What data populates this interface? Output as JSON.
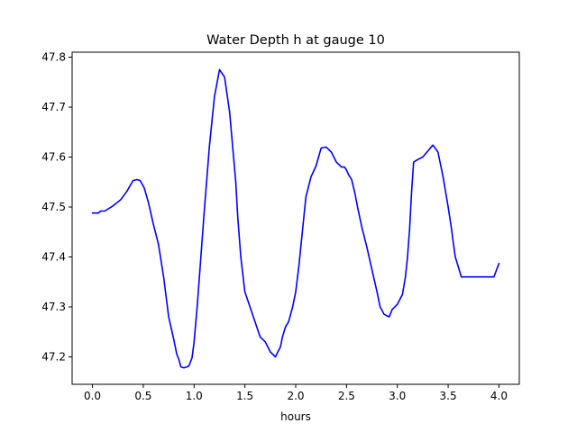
{
  "chart_data": {
    "type": "line",
    "title": "Water Depth h at gauge 10",
    "xlabel": "hours",
    "ylabel": "",
    "xlim": [
      -0.2,
      4.2
    ],
    "ylim": [
      47.145,
      47.81
    ],
    "x_ticks": [
      0.0,
      0.5,
      1.0,
      1.5,
      2.0,
      2.5,
      3.0,
      3.5,
      4.0
    ],
    "x_tick_labels": [
      "0.0",
      "0.5",
      "1.0",
      "1.5",
      "2.0",
      "2.5",
      "3.0",
      "3.5",
      "4.0"
    ],
    "y_ticks": [
      47.2,
      47.3,
      47.4,
      47.5,
      47.6,
      47.7,
      47.8
    ],
    "y_tick_labels": [
      "47.2",
      "47.3",
      "47.4",
      "47.5",
      "47.6",
      "47.7",
      "47.8"
    ],
    "grid": false,
    "series": [
      {
        "color": "#0000ff",
        "x": [
          0.0,
          0.06,
          0.08,
          0.12,
          0.2,
          0.28,
          0.34,
          0.4,
          0.44,
          0.47,
          0.51,
          0.55,
          0.6,
          0.65,
          0.7,
          0.75,
          0.8,
          0.83,
          0.85,
          0.87,
          0.9,
          0.93,
          0.95,
          0.98,
          1.0,
          1.03,
          1.06,
          1.1,
          1.15,
          1.2,
          1.25,
          1.3,
          1.35,
          1.38,
          1.41,
          1.43,
          1.46,
          1.5,
          1.55,
          1.6,
          1.65,
          1.7,
          1.75,
          1.8,
          1.83,
          1.85,
          1.87,
          1.9,
          1.93,
          1.97,
          2.0,
          2.03,
          2.07,
          2.1,
          2.15,
          2.2,
          2.25,
          2.3,
          2.35,
          2.4,
          2.45,
          2.48,
          2.5,
          2.52,
          2.55,
          2.58,
          2.61,
          2.65,
          2.7,
          2.75,
          2.8,
          2.83,
          2.87,
          2.92,
          2.95,
          3.0,
          3.05,
          3.08,
          3.1,
          3.12,
          3.14,
          3.16,
          3.2,
          3.25,
          3.3,
          3.35,
          3.4,
          3.45,
          3.5,
          3.53,
          3.55,
          3.57,
          3.6,
          3.63,
          3.65,
          3.68,
          3.7,
          3.75,
          3.8,
          3.85,
          3.9,
          3.95,
          4.0
        ],
        "y": [
          47.488,
          47.488,
          47.492,
          47.492,
          47.502,
          47.515,
          47.532,
          47.553,
          47.555,
          47.553,
          47.538,
          47.51,
          47.465,
          47.425,
          47.36,
          47.28,
          47.235,
          47.205,
          47.195,
          47.18,
          47.178,
          47.18,
          47.182,
          47.198,
          47.23,
          47.3,
          47.38,
          47.49,
          47.62,
          47.72,
          47.775,
          47.76,
          47.69,
          47.62,
          47.55,
          47.48,
          47.4,
          47.33,
          47.3,
          47.27,
          47.24,
          47.23,
          47.21,
          47.2,
          47.212,
          47.22,
          47.24,
          47.26,
          47.27,
          47.3,
          47.33,
          47.38,
          47.46,
          47.52,
          47.56,
          47.582,
          47.618,
          47.62,
          47.61,
          47.59,
          47.58,
          47.58,
          47.574,
          47.565,
          47.555,
          47.53,
          47.498,
          47.46,
          47.42,
          47.375,
          47.33,
          47.3,
          47.285,
          47.28,
          47.295,
          47.305,
          47.325,
          47.36,
          47.4,
          47.455,
          47.53,
          47.59,
          47.595,
          47.6,
          47.612,
          47.624,
          47.61,
          47.56,
          47.5,
          47.46,
          47.43,
          47.4,
          47.38,
          47.36,
          47.36,
          47.36,
          47.36,
          47.36,
          47.36,
          47.36,
          47.36,
          47.36,
          47.387
        ]
      }
    ]
  }
}
